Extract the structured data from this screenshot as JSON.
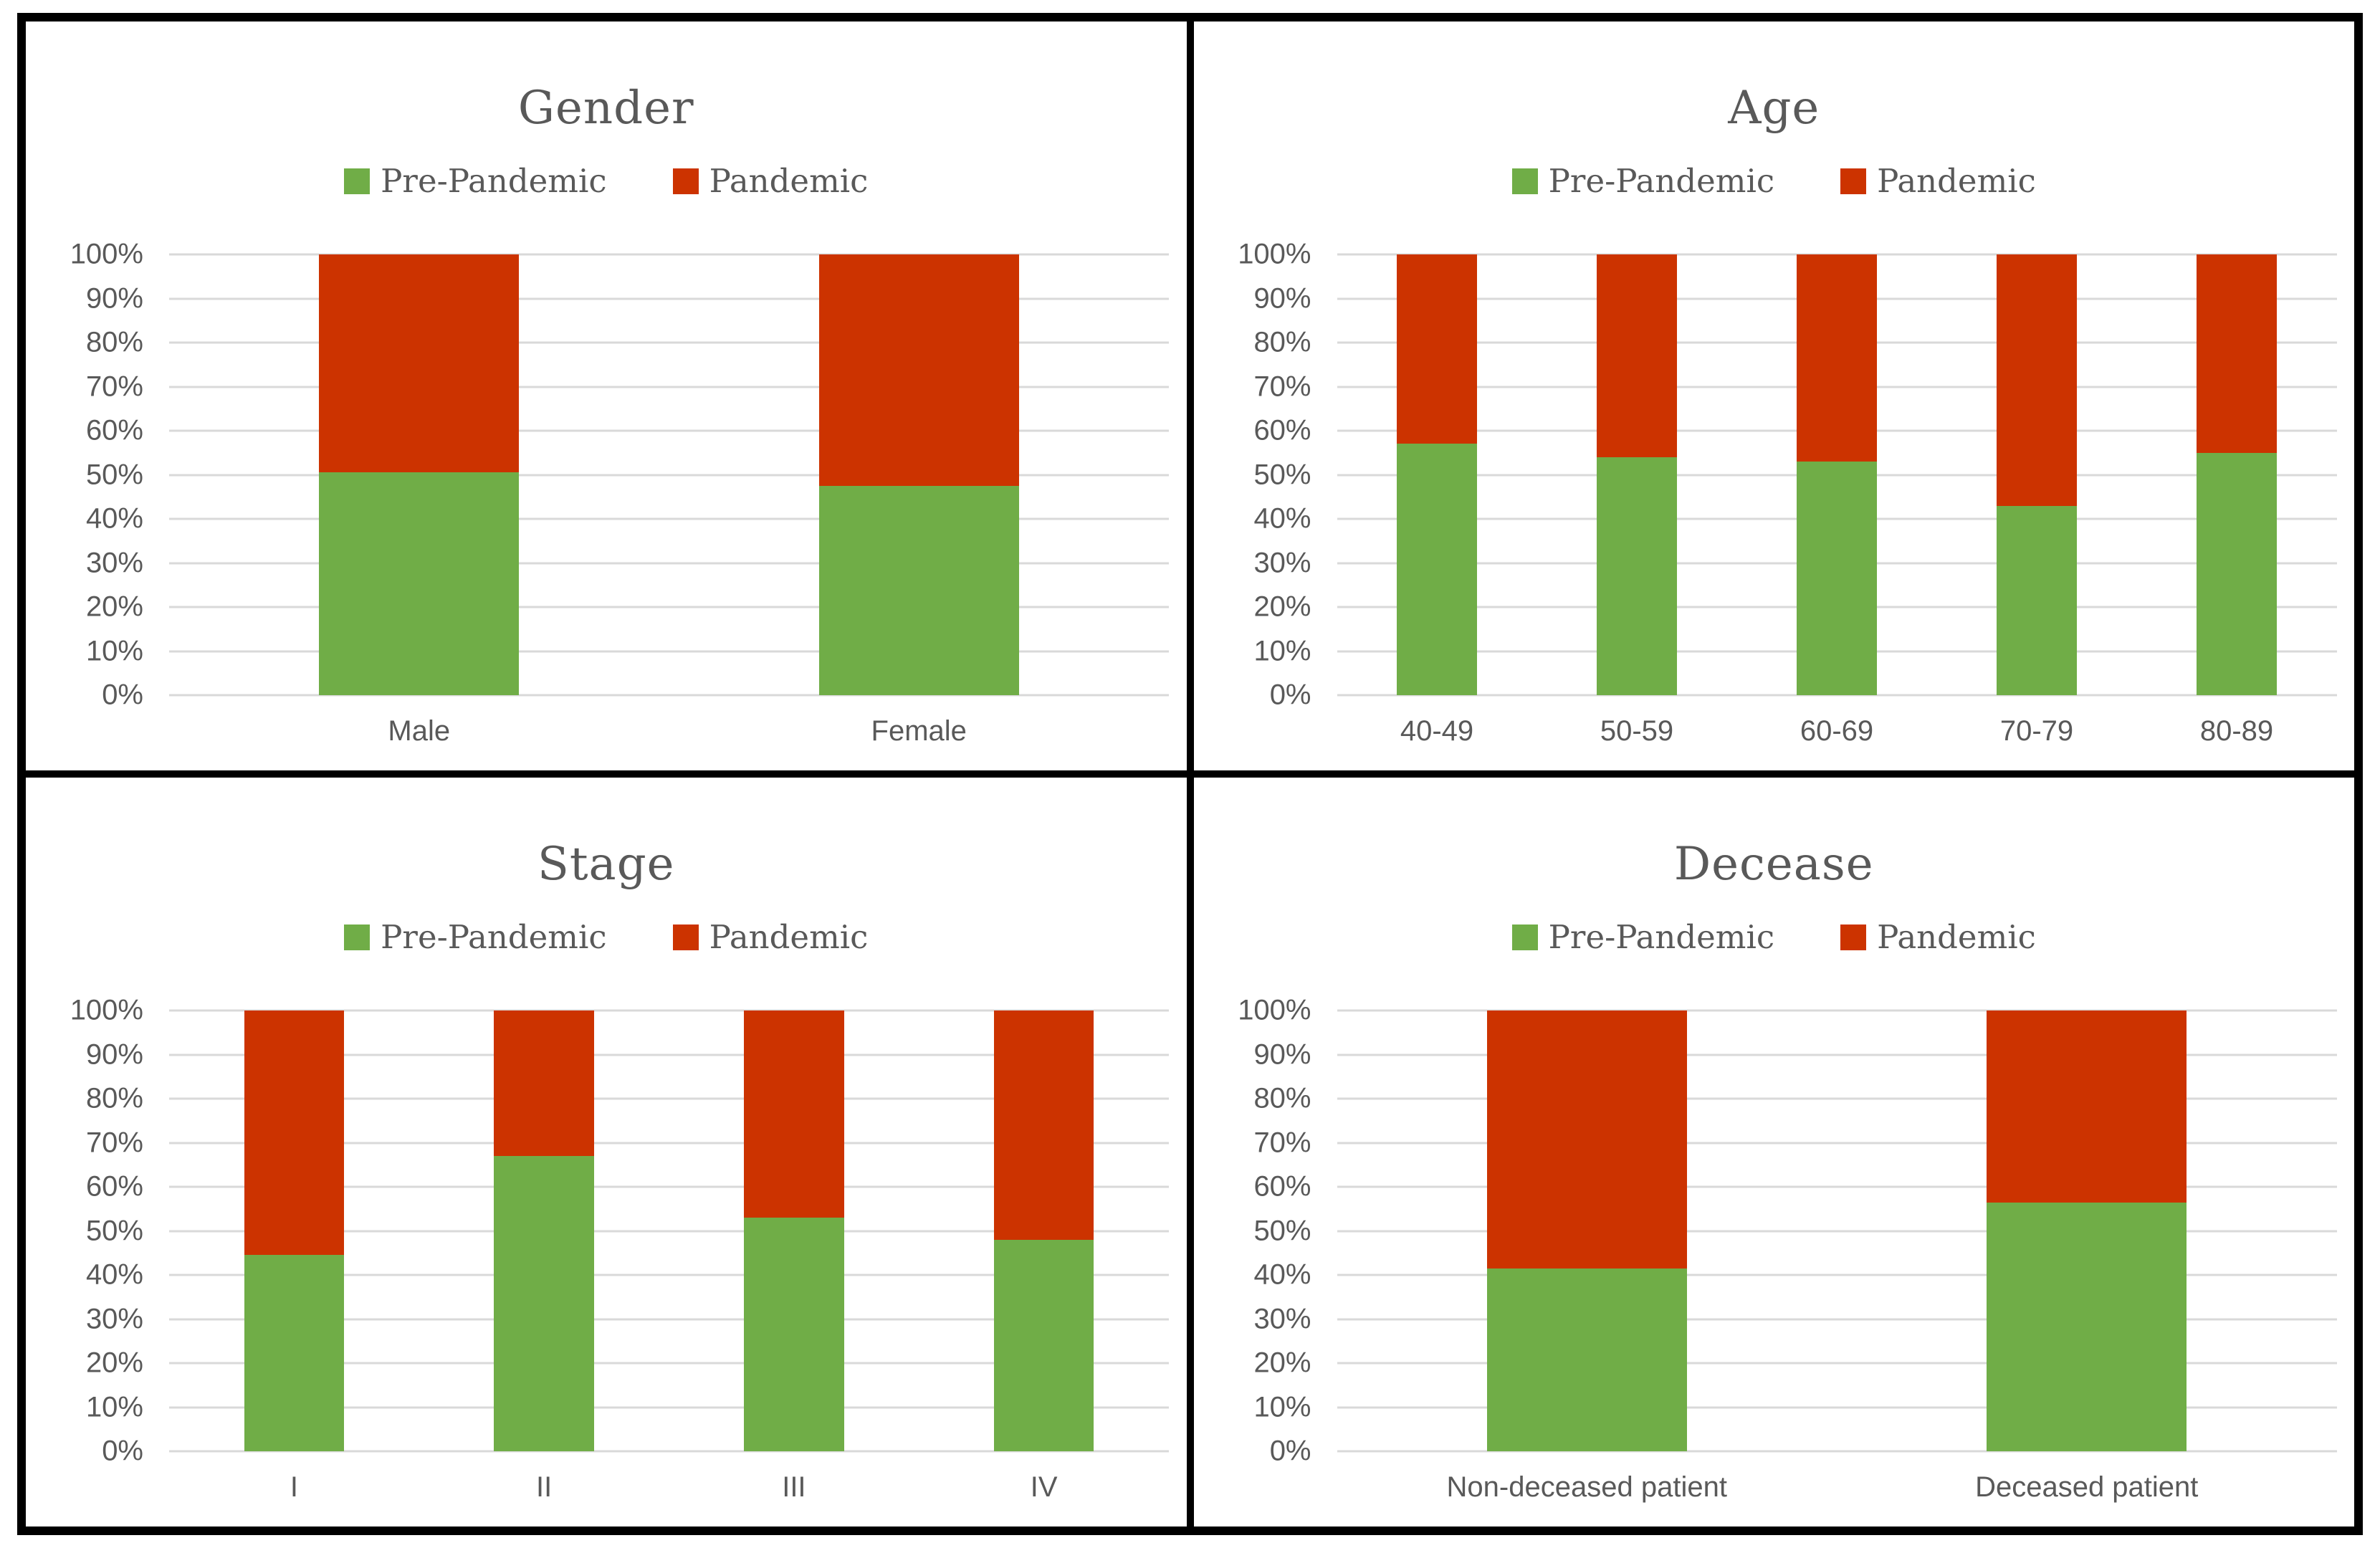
{
  "figure": {
    "background": "#FFFFFF",
    "border_color": "#000000",
    "layout": "2x2-grid"
  },
  "colors": {
    "pre_pandemic": "#70AD47",
    "pandemic": "#CC3300",
    "title_text": "#595959",
    "axis_text": "#595959",
    "gridline": "#D9D9D9",
    "border": "#000000"
  },
  "legend": {
    "position": "top",
    "items": [
      {
        "label": "Pre-Pandemic",
        "color": "#70AD47",
        "marker": "square"
      },
      {
        "label": "Pandemic",
        "color": "#CC3300",
        "marker": "square"
      }
    ]
  },
  "y_axis": {
    "tick_labels": [
      "100%",
      "90%",
      "80%",
      "70%",
      "60%",
      "50%",
      "40%",
      "30%",
      "20%",
      "10%",
      "0%"
    ],
    "min": 0,
    "max": 100,
    "unit": "%"
  },
  "chart_data": [
    {
      "id": "gender",
      "type": "bar",
      "subtype": "stacked-100",
      "title": "Gender",
      "xlabel": "",
      "ylabel": "",
      "ylim": [
        0,
        100
      ],
      "grid": true,
      "legend_position": "top",
      "categories": [
        "Male",
        "Female"
      ],
      "series": [
        {
          "name": "Pre-Pandemic",
          "color": "#70AD47",
          "values": [
            50.5,
            47.5
          ]
        },
        {
          "name": "Pandemic",
          "color": "#CC3300",
          "values": [
            49.5,
            52.5
          ]
        }
      ]
    },
    {
      "id": "age",
      "type": "bar",
      "subtype": "stacked-100",
      "title": "Age",
      "xlabel": "",
      "ylabel": "",
      "ylim": [
        0,
        100
      ],
      "grid": true,
      "legend_position": "top",
      "categories": [
        "40-49",
        "50-59",
        "60-69",
        "70-79",
        "80-89"
      ],
      "series": [
        {
          "name": "Pre-Pandemic",
          "color": "#70AD47",
          "values": [
            57,
            54,
            53,
            43,
            55
          ]
        },
        {
          "name": "Pandemic",
          "color": "#CC3300",
          "values": [
            43,
            46,
            47,
            57,
            45
          ]
        }
      ]
    },
    {
      "id": "stage",
      "type": "bar",
      "subtype": "stacked-100",
      "title": "Stage",
      "xlabel": "",
      "ylabel": "",
      "ylim": [
        0,
        100
      ],
      "grid": true,
      "legend_position": "top",
      "categories": [
        "I",
        "II",
        "III",
        "IV"
      ],
      "series": [
        {
          "name": "Pre-Pandemic",
          "color": "#70AD47",
          "values": [
            44.5,
            67,
            53,
            48
          ]
        },
        {
          "name": "Pandemic",
          "color": "#CC3300",
          "values": [
            55.5,
            33,
            47,
            52
          ]
        }
      ]
    },
    {
      "id": "decease",
      "type": "bar",
      "subtype": "stacked-100",
      "title": "Decease",
      "xlabel": "",
      "ylabel": "",
      "ylim": [
        0,
        100
      ],
      "grid": true,
      "legend_position": "top",
      "categories": [
        "Non-deceased patient",
        "Deceased patient"
      ],
      "series": [
        {
          "name": "Pre-Pandemic",
          "color": "#70AD47",
          "values": [
            41.5,
            56.5
          ]
        },
        {
          "name": "Pandemic",
          "color": "#CC3300",
          "values": [
            58.5,
            43.5
          ]
        }
      ]
    }
  ]
}
